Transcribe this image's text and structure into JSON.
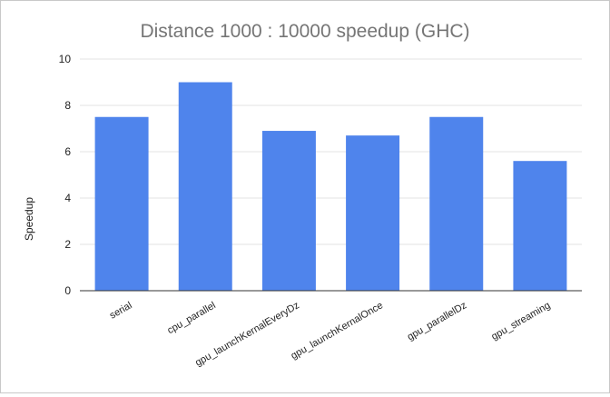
{
  "chart_data": {
    "type": "bar",
    "title": "Distance 1000 : 10000 speedup (GHC)",
    "xlabel": "",
    "ylabel": "Speedup",
    "categories": [
      "serial",
      "cpu_parallel",
      "gpu_launchKernalEveryDz",
      "gpu_launchKernalOnce",
      "gpu_parallelDz",
      "gpu_streaming"
    ],
    "values": [
      7.5,
      9.0,
      6.9,
      6.7,
      7.5,
      5.6
    ],
    "ylim": [
      0,
      10
    ],
    "yticks": [
      "0",
      "2",
      "4",
      "6",
      "8",
      "10"
    ],
    "grid": true,
    "legend": "none",
    "bar_color": "#4f84ec"
  }
}
